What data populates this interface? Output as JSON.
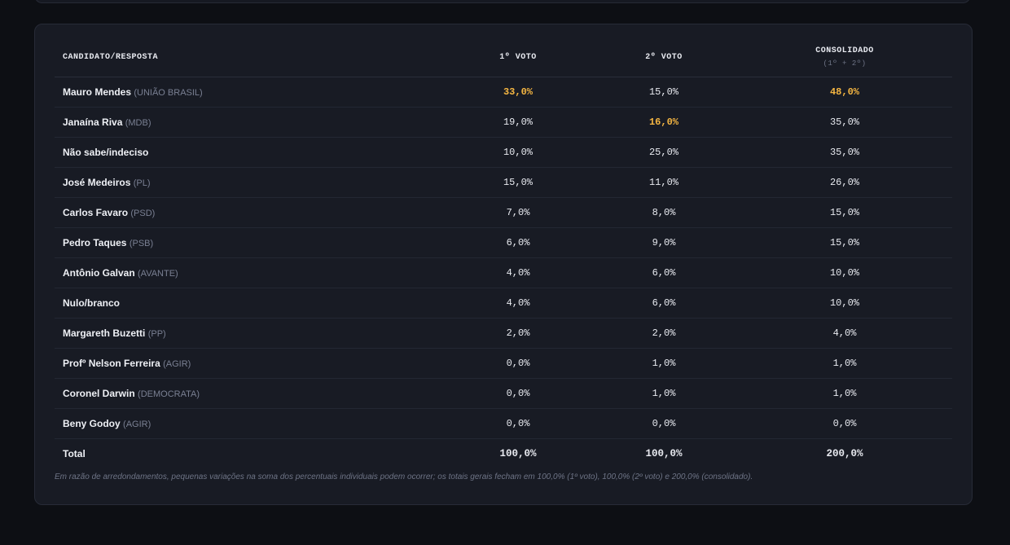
{
  "header": {
    "candidate": "CANDIDATO/RESPOSTA",
    "vote1": "1º VOTO",
    "vote2": "2º VOTO",
    "consolidated": "CONSOLIDADO",
    "consolidated_sub": "(1º + 2º)"
  },
  "rows": [
    {
      "name": "Mauro Mendes",
      "party": "(UNIÃO BRASIL)",
      "v1": "33,0%",
      "v2": "15,0%",
      "cons": "48,0%"
    },
    {
      "name": "Janaína Riva",
      "party": "(MDB)",
      "v1": "19,0%",
      "v2": "16,0%",
      "cons": "35,0%"
    },
    {
      "name": "Não sabe/indeciso",
      "party": "",
      "v1": "10,0%",
      "v2": "25,0%",
      "cons": "35,0%"
    },
    {
      "name": "José Medeiros",
      "party": "(PL)",
      "v1": "15,0%",
      "v2": "11,0%",
      "cons": "26,0%"
    },
    {
      "name": "Carlos Favaro",
      "party": "(PSD)",
      "v1": "7,0%",
      "v2": "8,0%",
      "cons": "15,0%"
    },
    {
      "name": "Pedro Taques",
      "party": "(PSB)",
      "v1": "6,0%",
      "v2": "9,0%",
      "cons": "15,0%"
    },
    {
      "name": "Antônio Galvan",
      "party": "(AVANTE)",
      "v1": "4,0%",
      "v2": "6,0%",
      "cons": "10,0%"
    },
    {
      "name": "Nulo/branco",
      "party": "",
      "v1": "4,0%",
      "v2": "6,0%",
      "cons": "10,0%"
    },
    {
      "name": "Margareth Buzetti",
      "party": "(PP)",
      "v1": "2,0%",
      "v2": "2,0%",
      "cons": "4,0%"
    },
    {
      "name": "Profº Nelson Ferreira",
      "party": "(AGIR)",
      "v1": "0,0%",
      "v2": "1,0%",
      "cons": "1,0%"
    },
    {
      "name": "Coronel Darwin",
      "party": "(DEMOCRATA)",
      "v1": "0,0%",
      "v2": "1,0%",
      "cons": "1,0%"
    },
    {
      "name": "Beny Godoy",
      "party": "(AGIR)",
      "v1": "0,0%",
      "v2": "0,0%",
      "cons": "0,0%"
    }
  ],
  "total": {
    "name": "Total",
    "v1": "100,0%",
    "v2": "100,0%",
    "cons": "200,0%"
  },
  "note": "Em razão de arredondamentos, pequenas variações na soma dos percentuais individuais podem ocorrer; os totais gerais fecham em 100,0% (1º voto), 100,0% (2º voto) e 200,0% (consolidado).",
  "colors": {
    "highlight": "#f5b642",
    "background": "#0d0f14",
    "card": "#181b24"
  }
}
